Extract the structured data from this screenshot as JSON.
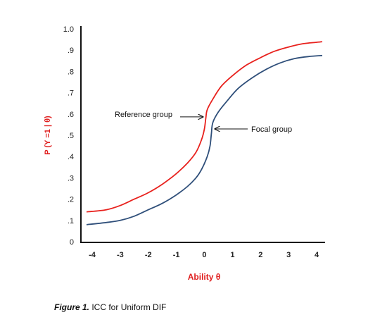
{
  "chart_data": {
    "type": "line",
    "xlabel": "Ability θ",
    "ylabel": "P (Y =1 | θ)",
    "xlim": [
      -4.4,
      4.3
    ],
    "ylim": [
      0,
      1.0
    ],
    "x_ticks": [
      "-4",
      "-3",
      "-2",
      "-1",
      "0",
      "1",
      "2",
      "3",
      "4"
    ],
    "y_ticks": [
      "0",
      ".1",
      ".2",
      ".3",
      ".4",
      ".5",
      ".6",
      ".7",
      ".8",
      ".9",
      "1.0"
    ],
    "grid": false,
    "series": [
      {
        "name": "Reference group",
        "color": "#e8211d",
        "x": [
          -4.2,
          -3.5,
          -3.0,
          -2.5,
          -2.0,
          -1.5,
          -1.0,
          -0.6,
          -0.3,
          -0.1,
          0.0,
          0.05,
          0.1,
          0.3,
          0.6,
          1.0,
          1.5,
          2.0,
          2.5,
          3.0,
          3.5,
          4.0,
          4.2
        ],
        "y": [
          0.14,
          0.15,
          0.17,
          0.2,
          0.23,
          0.27,
          0.32,
          0.37,
          0.42,
          0.48,
          0.53,
          0.58,
          0.62,
          0.67,
          0.73,
          0.78,
          0.83,
          0.865,
          0.895,
          0.915,
          0.93,
          0.937,
          0.94
        ]
      },
      {
        "name": "Focal group",
        "color": "#2f4f7a",
        "x": [
          -4.2,
          -3.5,
          -3.0,
          -2.5,
          -2.0,
          -1.5,
          -1.0,
          -0.6,
          -0.3,
          -0.1,
          0.1,
          0.2,
          0.25,
          0.3,
          0.5,
          0.8,
          1.2,
          1.7,
          2.2,
          2.7,
          3.2,
          3.7,
          4.2
        ],
        "y": [
          0.08,
          0.09,
          0.1,
          0.12,
          0.15,
          0.18,
          0.22,
          0.26,
          0.3,
          0.34,
          0.4,
          0.45,
          0.51,
          0.56,
          0.61,
          0.66,
          0.72,
          0.77,
          0.81,
          0.84,
          0.86,
          0.87,
          0.875
        ]
      }
    ],
    "annotations": [
      {
        "text": "Reference group",
        "target": "Reference group",
        "point": [
          0.0,
          0.58
        ]
      },
      {
        "text": "Focal group",
        "target": "Focal group",
        "point": [
          0.3,
          0.53
        ]
      }
    ]
  },
  "caption": {
    "figure_label": "Figure 1.",
    "text": " ICC for Uniform DIF"
  }
}
